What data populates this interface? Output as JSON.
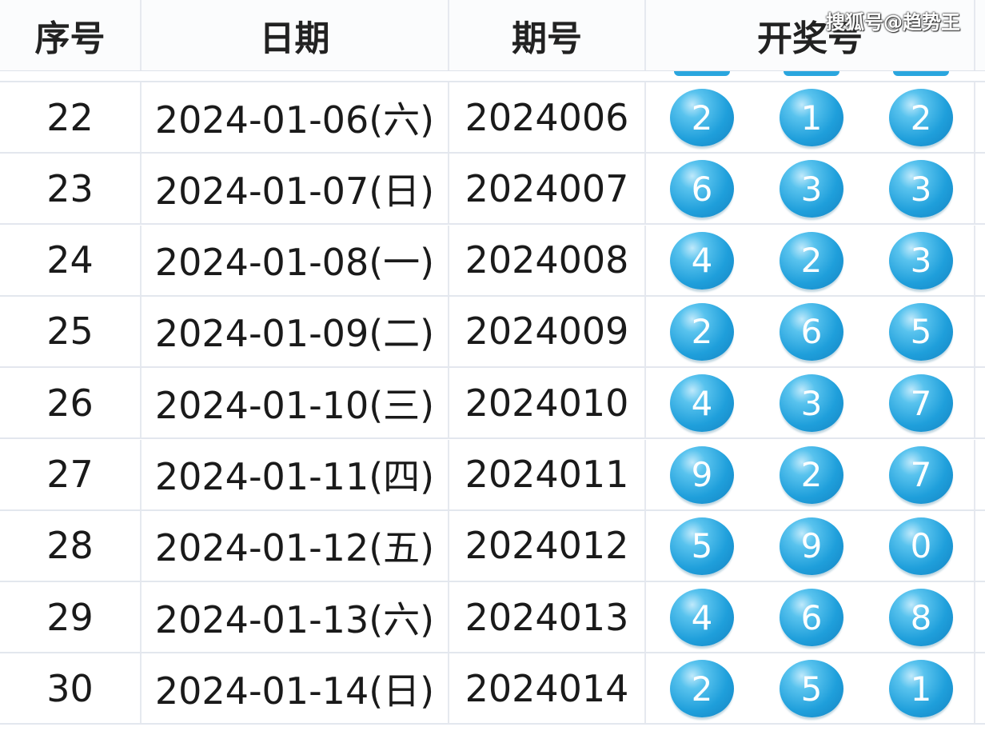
{
  "watermark": "搜狐号@趋势王",
  "headers": [
    "序号",
    "日期",
    "期号",
    "开奖号"
  ],
  "rows": [
    {
      "no": "22",
      "date": "2024-01-06(六)",
      "issue": "2024006",
      "balls": [
        "2",
        "1",
        "2"
      ]
    },
    {
      "no": "23",
      "date": "2024-01-07(日)",
      "issue": "2024007",
      "balls": [
        "6",
        "3",
        "3"
      ]
    },
    {
      "no": "24",
      "date": "2024-01-08(一)",
      "issue": "2024008",
      "balls": [
        "4",
        "2",
        "3"
      ]
    },
    {
      "no": "25",
      "date": "2024-01-09(二)",
      "issue": "2024009",
      "balls": [
        "2",
        "6",
        "5"
      ]
    },
    {
      "no": "26",
      "date": "2024-01-10(三)",
      "issue": "2024010",
      "balls": [
        "4",
        "3",
        "7"
      ]
    },
    {
      "no": "27",
      "date": "2024-01-11(四)",
      "issue": "2024011",
      "balls": [
        "9",
        "2",
        "7"
      ]
    },
    {
      "no": "28",
      "date": "2024-01-12(五)",
      "issue": "2024012",
      "balls": [
        "5",
        "9",
        "0"
      ]
    },
    {
      "no": "29",
      "date": "2024-01-13(六)",
      "issue": "2024013",
      "balls": [
        "4",
        "6",
        "8"
      ]
    },
    {
      "no": "30",
      "date": "2024-01-14(日)",
      "issue": "2024014",
      "balls": [
        "2",
        "5",
        "1"
      ]
    }
  ],
  "colors": {
    "ball": "#1f9fdb",
    "grid": "#e3e7ee"
  }
}
